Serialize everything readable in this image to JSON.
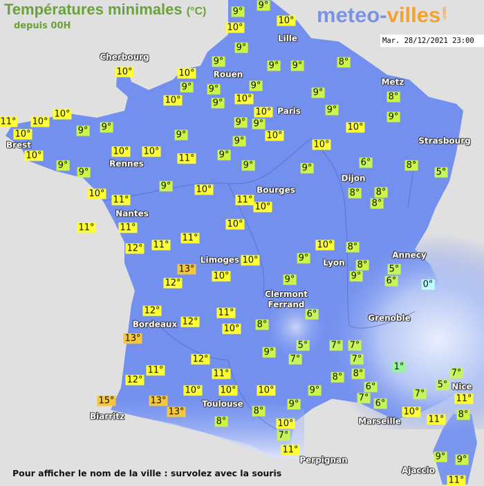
{
  "header": {
    "title": "Températures minimales",
    "unit": "(°C)",
    "subtitle": "depuis 00H",
    "logo": {
      "part1": "meteo-",
      "part2": "villes",
      "part3": ".com"
    },
    "datetime": "Mar. 28/12/2021 23:00"
  },
  "footer": {
    "hint": "Pour afficher le nom de la ville : survolez avec la souris"
  },
  "colors": {
    "sea": "#e1e0e0",
    "land": "#7390ee",
    "title_green": "#6aa13a",
    "label_cold": "#bfffff",
    "label_1": "#99f59a",
    "label_5_7": "#c6f55a",
    "label_8_9": "#ccf545",
    "label_10_12": "#ffff33",
    "label_13_plus": "#f5c640"
  },
  "cities": [
    "Cherbourg",
    "Lille",
    "Rouen",
    "Paris",
    "Metz",
    "Strasbourg",
    "Brest",
    "Rennes",
    "Dijon",
    "Bourges",
    "Nantes",
    "Annecy",
    "Limoges",
    "Lyon",
    "Clermont\nFerrand",
    "Grenoble",
    "Bordeaux",
    "Nice",
    "Toulouse",
    "Marseille",
    "Biarritz",
    "Perpignan",
    "Ajaccio"
  ],
  "stations": [
    "9°",
    "9°",
    "10°",
    "10°",
    "9°",
    "10°",
    "9°",
    "10°",
    "9°",
    "9°",
    "9°",
    "10°",
    "9°",
    "9°",
    "8°",
    "9°",
    "10°",
    "10°",
    "9°",
    "9°",
    "8°",
    "9°",
    "10°",
    "11°",
    "10°",
    "10°",
    "9°",
    "9°",
    "9°",
    "9°",
    "10°",
    "10°",
    "9°",
    "9°",
    "10°",
    "10°",
    "10°",
    "10°",
    "11°",
    "9°",
    "9°",
    "9°",
    "9°",
    "9°",
    "6°",
    "8°",
    "5°",
    "10°",
    "11°",
    "9°",
    "10°",
    "11°",
    "10°",
    "8°",
    "8°",
    "8°",
    "11°",
    "11°",
    "10°",
    "12°",
    "11°",
    "11°",
    "10°",
    "8°",
    "13°",
    "12°",
    "10°",
    "10°",
    "9°",
    "9°",
    "8°",
    "9°",
    "5°",
    "6°",
    "0°",
    "12°",
    "11°",
    "12°",
    "10°",
    "8°",
    "6°",
    "13°",
    "9°",
    "5°",
    "7°",
    "7°",
    "7°",
    "7°",
    "12°",
    "1°",
    "7°",
    "5°",
    "11°",
    "11°",
    "12°",
    "8°",
    "8°",
    "6°",
    "11°",
    "10°",
    "10°",
    "10°",
    "9°",
    "7°",
    "6°",
    "7°",
    "15°",
    "13°",
    "13°",
    "8°",
    "8°",
    "9°",
    "10°",
    "11°",
    "8°",
    "10°",
    "7°",
    "11°",
    "9°",
    "9°",
    "11°"
  ]
}
